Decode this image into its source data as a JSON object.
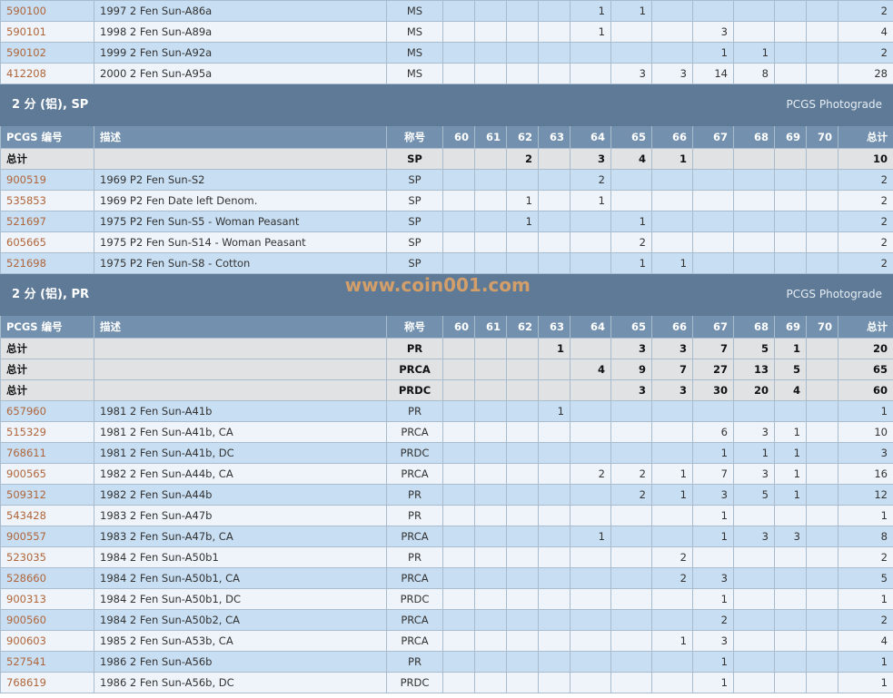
{
  "columns": [
    "PCGS 编号",
    "描述",
    "称号",
    "60",
    "61",
    "62",
    "63",
    "64",
    "65",
    "66",
    "67",
    "68",
    "69",
    "70",
    "总计"
  ],
  "watermark": "www.coin001.com",
  "colors": {
    "section": "#5e7a96",
    "header": "#7391ae",
    "row_a": "#c8def2",
    "row_b": "#eef4fa",
    "total": "#e1e2e3",
    "link": "#b0653a"
  },
  "blocks": [
    {
      "rows": [
        {
          "id": "590100",
          "desc": "1997 2 Fen Sun-A86a",
          "grade": "MS",
          "c": [
            "",
            "",
            "",
            "",
            "1",
            "1",
            "",
            "",
            "",
            "",
            ""
          ],
          "total": "2"
        },
        {
          "id": "590101",
          "desc": "1998 2 Fen Sun-A89a",
          "grade": "MS",
          "c": [
            "",
            "",
            "",
            "",
            "1",
            "",
            "",
            "3",
            "",
            "",
            ""
          ],
          "total": "4"
        },
        {
          "id": "590102",
          "desc": "1999 2 Fen Sun-A92a",
          "grade": "MS",
          "c": [
            "",
            "",
            "",
            "",
            "",
            "",
            "",
            "1",
            "1",
            "",
            ""
          ],
          "total": "2"
        },
        {
          "id": "412208",
          "desc": "2000 2 Fen Sun-A95a",
          "grade": "MS",
          "c": [
            "",
            "",
            "",
            "",
            "",
            "3",
            "3",
            "14",
            "8",
            "",
            ""
          ],
          "total": "28"
        }
      ]
    },
    {
      "title": "2 分 (铝), SP",
      "right": "PCGS Photograde",
      "header": true,
      "totals": [
        {
          "label": "总计",
          "grade": "SP",
          "c": [
            "",
            "",
            "2",
            "",
            "3",
            "4",
            "1",
            "",
            "",
            "",
            ""
          ],
          "total": "10"
        }
      ],
      "rows": [
        {
          "id": "900519",
          "desc": "1969 P2 Fen Sun-S2",
          "grade": "SP",
          "c": [
            "",
            "",
            "",
            "",
            "2",
            "",
            "",
            "",
            "",
            "",
            ""
          ],
          "total": "2"
        },
        {
          "id": "535853",
          "desc": "1969 P2 Fen Date left Denom.",
          "grade": "SP",
          "c": [
            "",
            "",
            "1",
            "",
            "1",
            "",
            "",
            "",
            "",
            "",
            ""
          ],
          "total": "2"
        },
        {
          "id": "521697",
          "desc": "1975 P2 Fen Sun-S5 - Woman Peasant",
          "grade": "SP",
          "c": [
            "",
            "",
            "1",
            "",
            "",
            "1",
            "",
            "",
            "",
            "",
            ""
          ],
          "total": "2"
        },
        {
          "id": "605665",
          "desc": "1975 P2 Fen Sun-S14 - Woman Peasant",
          "grade": "SP",
          "c": [
            "",
            "",
            "",
            "",
            "",
            "2",
            "",
            "",
            "",
            "",
            ""
          ],
          "total": "2"
        },
        {
          "id": "521698",
          "desc": "1975 P2 Fen Sun-S8 - Cotton",
          "grade": "SP",
          "c": [
            "",
            "",
            "",
            "",
            "",
            "1",
            "1",
            "",
            "",
            "",
            ""
          ],
          "total": "2"
        }
      ]
    },
    {
      "title": "2 分 (铝), PR",
      "right": "PCGS Photograde",
      "header": true,
      "totals": [
        {
          "label": "总计",
          "grade": "PR",
          "c": [
            "",
            "",
            "",
            "1",
            "",
            "3",
            "3",
            "7",
            "5",
            "1",
            ""
          ],
          "total": "20"
        },
        {
          "label": "总计",
          "grade": "PRCA",
          "c": [
            "",
            "",
            "",
            "",
            "4",
            "9",
            "7",
            "27",
            "13",
            "5",
            ""
          ],
          "total": "65"
        },
        {
          "label": "总计",
          "grade": "PRDC",
          "c": [
            "",
            "",
            "",
            "",
            "",
            "3",
            "3",
            "30",
            "20",
            "4",
            ""
          ],
          "total": "60"
        }
      ],
      "rows": [
        {
          "id": "657960",
          "desc": "1981 2 Fen Sun-A41b",
          "grade": "PR",
          "c": [
            "",
            "",
            "",
            "1",
            "",
            "",
            "",
            "",
            "",
            "",
            ""
          ],
          "total": "1"
        },
        {
          "id": "515329",
          "desc": "1981 2 Fen Sun-A41b, CA",
          "grade": "PRCA",
          "c": [
            "",
            "",
            "",
            "",
            "",
            "",
            "",
            "6",
            "3",
            "1",
            ""
          ],
          "total": "10"
        },
        {
          "id": "768611",
          "desc": "1981 2 Fen Sun-A41b, DC",
          "grade": "PRDC",
          "c": [
            "",
            "",
            "",
            "",
            "",
            "",
            "",
            "1",
            "1",
            "1",
            ""
          ],
          "total": "3"
        },
        {
          "id": "900565",
          "desc": "1982 2 Fen Sun-A44b, CA",
          "grade": "PRCA",
          "c": [
            "",
            "",
            "",
            "",
            "2",
            "2",
            "1",
            "7",
            "3",
            "1",
            ""
          ],
          "total": "16"
        },
        {
          "id": "509312",
          "desc": "1982 2 Fen Sun-A44b",
          "grade": "PR",
          "c": [
            "",
            "",
            "",
            "",
            "",
            "2",
            "1",
            "3",
            "5",
            "1",
            ""
          ],
          "total": "12"
        },
        {
          "id": "543428",
          "desc": "1983 2 Fen Sun-A47b",
          "grade": "PR",
          "c": [
            "",
            "",
            "",
            "",
            "",
            "",
            "",
            "1",
            "",
            "",
            ""
          ],
          "total": "1"
        },
        {
          "id": "900557",
          "desc": "1983 2 Fen Sun-A47b, CA",
          "grade": "PRCA",
          "c": [
            "",
            "",
            "",
            "",
            "1",
            "",
            "",
            "1",
            "3",
            "3",
            ""
          ],
          "total": "8"
        },
        {
          "id": "523035",
          "desc": "1984 2 Fen Sun-A50b1",
          "grade": "PR",
          "c": [
            "",
            "",
            "",
            "",
            "",
            "",
            "2",
            "",
            "",
            "",
            ""
          ],
          "total": "2"
        },
        {
          "id": "528660",
          "desc": "1984 2 Fen Sun-A50b1, CA",
          "grade": "PRCA",
          "c": [
            "",
            "",
            "",
            "",
            "",
            "",
            "2",
            "3",
            "",
            "",
            ""
          ],
          "total": "5"
        },
        {
          "id": "900313",
          "desc": "1984 2 Fen Sun-A50b1, DC",
          "grade": "PRDC",
          "c": [
            "",
            "",
            "",
            "",
            "",
            "",
            "",
            "1",
            "",
            "",
            ""
          ],
          "total": "1"
        },
        {
          "id": "900560",
          "desc": "1984 2 Fen Sun-A50b2, CA",
          "grade": "PRCA",
          "c": [
            "",
            "",
            "",
            "",
            "",
            "",
            "",
            "2",
            "",
            "",
            ""
          ],
          "total": "2"
        },
        {
          "id": "900603",
          "desc": "1985 2 Fen Sun-A53b, CA",
          "grade": "PRCA",
          "c": [
            "",
            "",
            "",
            "",
            "",
            "",
            "1",
            "3",
            "",
            "",
            ""
          ],
          "total": "4"
        },
        {
          "id": "527541",
          "desc": "1986 2 Fen Sun-A56b",
          "grade": "PR",
          "c": [
            "",
            "",
            "",
            "",
            "",
            "",
            "",
            "1",
            "",
            "",
            ""
          ],
          "total": "1"
        },
        {
          "id": "768619",
          "desc": "1986 2 Fen Sun-A56b, DC",
          "grade": "PRDC",
          "c": [
            "",
            "",
            "",
            "",
            "",
            "",
            "",
            "1",
            "",
            "",
            ""
          ],
          "total": "1"
        }
      ]
    }
  ]
}
